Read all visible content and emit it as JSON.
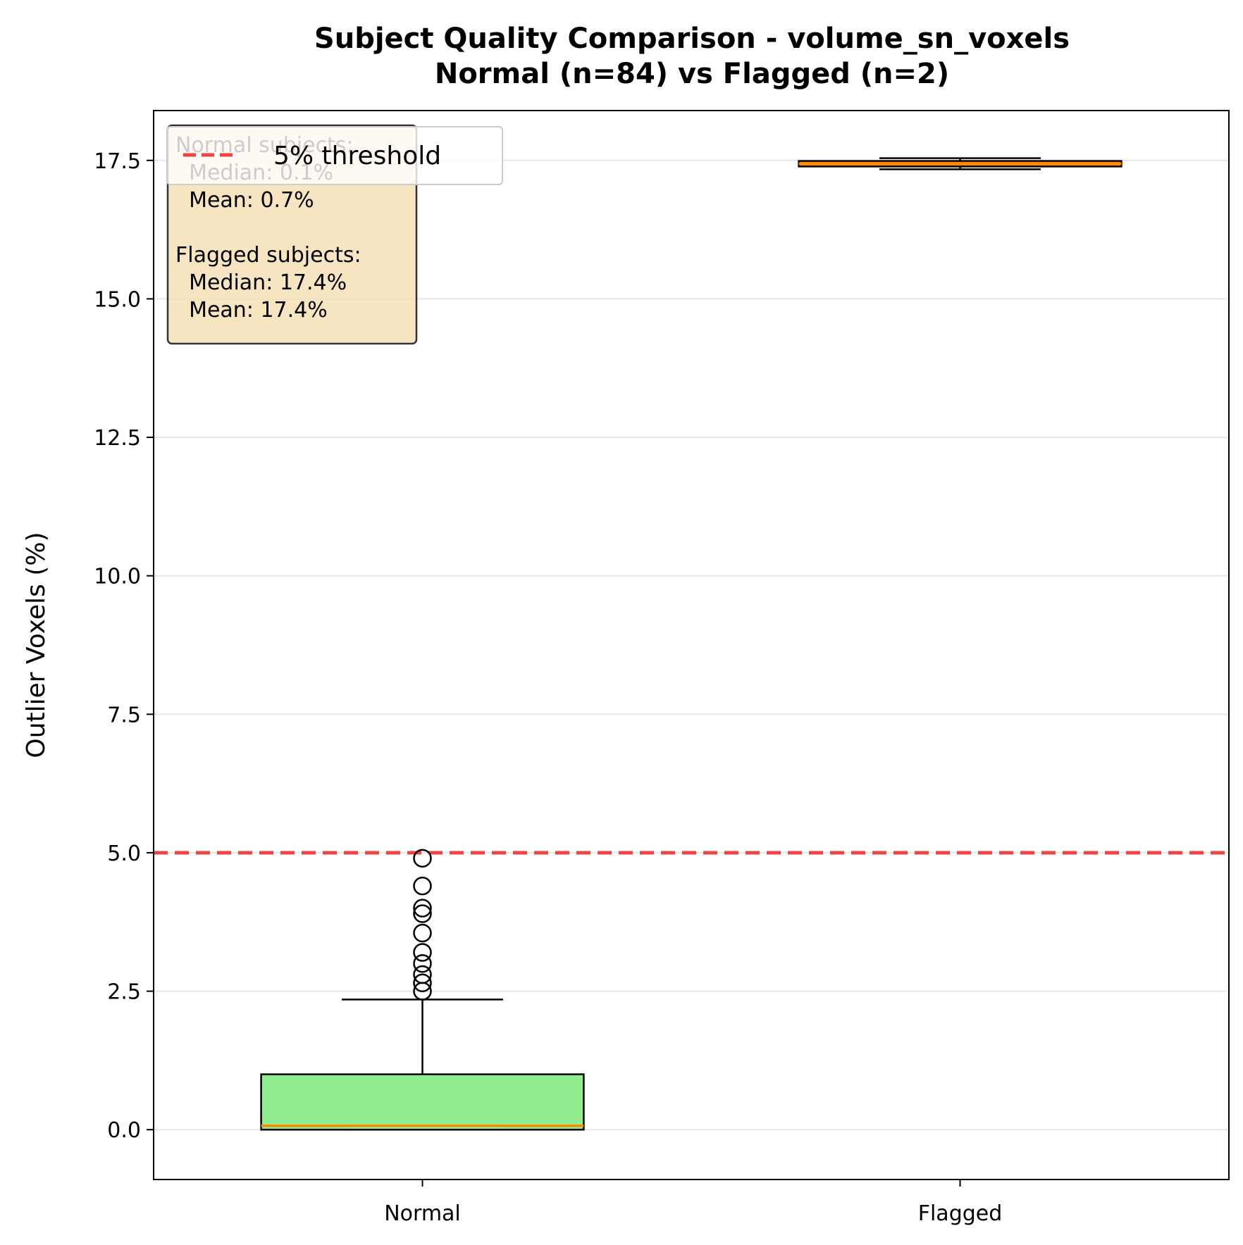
{
  "chart_data": {
    "type": "box",
    "title_lines": [
      "Subject Quality Comparison - volume_sn_voxels",
      "Normal (n=84) vs Flagged (n=2)"
    ],
    "xlabel": "",
    "ylabel": "Outlier Voxels (%)",
    "ylim": [
      -0.9,
      18.4
    ],
    "yticks": [
      "0.0",
      "2.5",
      "5.0",
      "7.5",
      "10.0",
      "12.5",
      "15.0",
      "17.5"
    ],
    "grid": "y",
    "categories": [
      "Normal",
      "Flagged"
    ],
    "boxes": [
      {
        "category": "Normal",
        "q1": 0.0,
        "median": 0.07,
        "q3": 1.0,
        "whisker_low": 0.0,
        "whisker_high": 2.35,
        "outliers": [
          4.9,
          4.4,
          4.0,
          3.9,
          3.55,
          3.2,
          3.0,
          2.8,
          2.65,
          2.5
        ],
        "color": "#90ee90"
      },
      {
        "category": "Flagged",
        "q1": 17.39,
        "median": 17.44,
        "q3": 17.49,
        "whisker_low": 17.34,
        "whisker_high": 17.54,
        "outliers": [],
        "color": "#ff7f0e"
      }
    ],
    "threshold": {
      "value": 5.0,
      "label": "5% threshold",
      "color": "#ef4444"
    },
    "legend_placement": "upper-left",
    "stats_lines": [
      "Normal subjects:",
      "  Median: 0.1%",
      "  Mean: 0.7%",
      "",
      "Flagged subjects:",
      "  Median: 17.4%",
      "  Mean: 17.4%"
    ],
    "stats_box_color": "#f5deb3",
    "median_color": "#ff8c00"
  }
}
